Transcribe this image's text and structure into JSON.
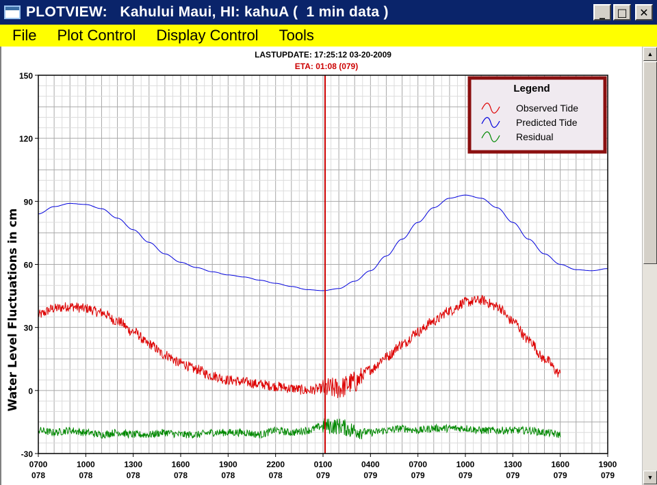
{
  "window": {
    "title": "PLOTVIEW:   Kahului Maui, HI: kahuA (  1 min data )",
    "minimize_icon": "minimize-icon",
    "maximize_icon": "maximize-icon",
    "close_icon": "close-icon"
  },
  "menu": {
    "items": [
      "File",
      "Plot Control",
      "Display Control",
      "Tools"
    ]
  },
  "header": {
    "lastupdate": "LASTUPDATE: 17:25:12  03-20-2009",
    "eta": "ETA: 01:08 (079)"
  },
  "colors": {
    "observed": "#dd0000",
    "predicted": "#0000dd",
    "residual": "#008800",
    "eta_line": "#cc0000",
    "legend_border": "#8b1010",
    "legend_bg": "#f0eaf0",
    "menu_bg": "#ffff00",
    "title_bg": "#0a246a"
  },
  "chart_data": {
    "type": "line",
    "title": "",
    "ylabel": "Water Level Fluctuations in cm",
    "xlabel": "",
    "ylim": [
      -30,
      150
    ],
    "xlim_hours": [
      7,
      43
    ],
    "yticks": [
      -30,
      0,
      30,
      60,
      90,
      120,
      150
    ],
    "xticks": [
      {
        "time": "0700",
        "day": "078"
      },
      {
        "time": "1000",
        "day": "078"
      },
      {
        "time": "1300",
        "day": "078"
      },
      {
        "time": "1600",
        "day": "078"
      },
      {
        "time": "1900",
        "day": "078"
      },
      {
        "time": "2200",
        "day": "078"
      },
      {
        "time": "0100",
        "day": "079"
      },
      {
        "time": "0400",
        "day": "079"
      },
      {
        "time": "0700",
        "day": "079"
      },
      {
        "time": "1000",
        "day": "079"
      },
      {
        "time": "1300",
        "day": "079"
      },
      {
        "time": "1600",
        "day": "079"
      },
      {
        "time": "1900",
        "day": "079"
      }
    ],
    "grid": true,
    "eta_line_hour": 25.13,
    "legend": {
      "title": "Legend",
      "position": "top-right",
      "entries": [
        "Observed Tide",
        "Predicted Tide",
        "Residual"
      ]
    },
    "series": [
      {
        "name": "Predicted Tide",
        "x": [
          7,
          8,
          9,
          10,
          11,
          12,
          13,
          14,
          15,
          16,
          17,
          18,
          19,
          20,
          21,
          22,
          23,
          24,
          25,
          26,
          27,
          28,
          29,
          30,
          31,
          32,
          33,
          34,
          35,
          36,
          37,
          38,
          39,
          40,
          41,
          42,
          43
        ],
        "values": [
          84,
          87.5,
          89,
          88.5,
          86.5,
          82,
          76.5,
          70.5,
          65,
          61,
          58.5,
          56.5,
          55,
          54,
          52.5,
          51,
          49.5,
          48,
          47.5,
          48.5,
          52,
          57,
          64,
          72,
          80,
          87,
          91.5,
          93,
          91.5,
          87,
          80,
          72,
          65,
          60,
          57.5,
          57,
          58
        ]
      },
      {
        "name": "Observed Tide",
        "x": [
          7,
          8,
          9,
          10,
          11,
          12,
          13,
          14,
          15,
          16,
          17,
          18,
          19,
          20,
          21,
          22,
          23,
          24,
          25,
          26,
          27,
          28,
          29,
          30,
          31,
          32,
          33,
          34,
          35,
          36,
          37,
          38,
          39,
          40
        ],
        "values": [
          36,
          39,
          40,
          39,
          37,
          33,
          28,
          22,
          17,
          13,
          10,
          7,
          5,
          4,
          3,
          2,
          1,
          0,
          1,
          1,
          4,
          10,
          16,
          22,
          28,
          33,
          38,
          42,
          43,
          40,
          33,
          24,
          15,
          8
        ]
      },
      {
        "name": "Residual",
        "x": [
          7,
          8,
          9,
          10,
          11,
          12,
          13,
          14,
          15,
          16,
          17,
          18,
          19,
          20,
          21,
          22,
          23,
          24,
          25,
          26,
          27,
          28,
          29,
          30,
          31,
          32,
          33,
          34,
          35,
          36,
          37,
          38,
          39,
          40
        ],
        "values": [
          -19,
          -20,
          -19,
          -20,
          -21,
          -20,
          -21,
          -21,
          -20,
          -21,
          -21,
          -20,
          -20,
          -20,
          -21,
          -19,
          -20,
          -19,
          -17,
          -17,
          -19,
          -20,
          -19,
          -18,
          -19,
          -18,
          -18,
          -18,
          -19,
          -19,
          -19,
          -19,
          -20,
          -21
        ]
      }
    ]
  }
}
